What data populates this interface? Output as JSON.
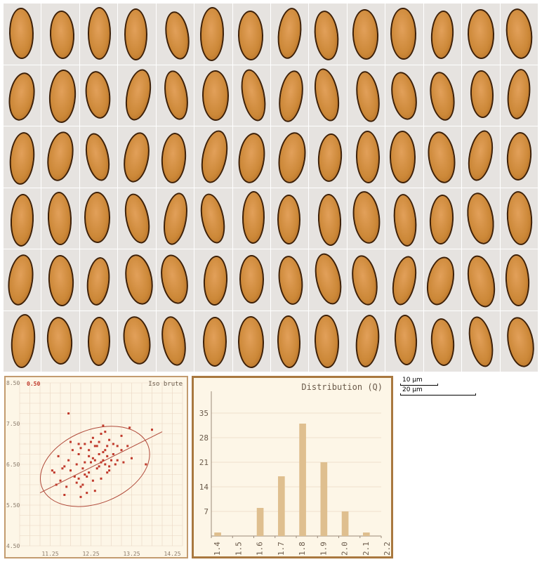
{
  "mosaic": {
    "rows": 6,
    "cols": 14,
    "cell_fill": "#e6e3e0",
    "spore_fill": "#cc8838",
    "spore_edge": "#3d2008",
    "spore_highlight": "#e2a05a"
  },
  "scatter_panel": {
    "corner_value": "0.50",
    "mode_label": "Iso brute",
    "colors": {
      "panel_bg": "#fdf6e7",
      "border": "#c39b6f",
      "grid": "#ead6c1",
      "point": "#c0392b",
      "ellipse": "#b04a3a",
      "tick_text": "#8a7a6a",
      "corner_text": "#c0392b"
    }
  },
  "histogram_panel": {
    "colors": {
      "panel_bg": "#fdf6e7",
      "border": "#a9783f",
      "bar": "#dfbf8f",
      "grid": "#efe0cd",
      "text": "#6a5a4a"
    }
  },
  "scale_bars": [
    {
      "label": "10 µm"
    },
    {
      "label": "20 µm"
    }
  ],
  "chart_data": [
    {
      "type": "scatter",
      "title": "",
      "xlabel": "",
      "ylabel": "",
      "annotations": [
        "0.50",
        "Iso brute"
      ],
      "xlim": [
        10.5,
        14.5
      ],
      "ylim": [
        4.5,
        8.5
      ],
      "x_ticks": [
        "11.25",
        "12.25",
        "13.25",
        "14.25"
      ],
      "y_ticks": [
        "8.50",
        "7.50",
        "6.50",
        "5.50",
        "4.50"
      ],
      "regression_line": {
        "from": [
          11.0,
          5.8
        ],
        "to": [
          14.0,
          7.3
        ]
      },
      "ellipse": {
        "center": [
          12.35,
          6.45
        ],
        "rx": 1.4,
        "ry": 0.9,
        "angle_deg": -22
      },
      "points": [
        [
          11.3,
          6.35
        ],
        [
          11.35,
          6.3
        ],
        [
          11.4,
          6.0
        ],
        [
          11.45,
          6.7
        ],
        [
          11.5,
          6.1
        ],
        [
          11.55,
          6.4
        ],
        [
          11.6,
          6.45
        ],
        [
          11.65,
          5.95
        ],
        [
          11.7,
          6.6
        ],
        [
          11.75,
          6.35
        ],
        [
          11.75,
          7.05
        ],
        [
          11.7,
          7.75
        ],
        [
          11.8,
          6.85
        ],
        [
          11.85,
          6.2
        ],
        [
          11.9,
          6.5
        ],
        [
          11.95,
          6.75
        ],
        [
          11.95,
          6.15
        ],
        [
          12.0,
          6.9
        ],
        [
          12.0,
          5.95
        ],
        [
          12.05,
          6.4
        ],
        [
          12.1,
          6.55
        ],
        [
          12.1,
          7.0
        ],
        [
          12.15,
          6.2
        ],
        [
          12.15,
          5.8
        ],
        [
          12.2,
          6.85
        ],
        [
          12.2,
          6.3
        ],
        [
          12.25,
          7.05
        ],
        [
          12.25,
          6.55
        ],
        [
          12.3,
          6.1
        ],
        [
          12.3,
          6.65
        ],
        [
          12.35,
          5.85
        ],
        [
          12.35,
          6.6
        ],
        [
          12.4,
          6.95
        ],
        [
          12.4,
          6.4
        ],
        [
          12.45,
          6.75
        ],
        [
          12.45,
          6.45
        ],
        [
          12.5,
          7.25
        ],
        [
          12.5,
          6.55
        ],
        [
          12.5,
          6.15
        ],
        [
          12.55,
          6.8
        ],
        [
          12.55,
          6.6
        ],
        [
          12.6,
          7.3
        ],
        [
          12.6,
          6.5
        ],
        [
          12.65,
          6.7
        ],
        [
          12.65,
          6.95
        ],
        [
          12.7,
          6.45
        ],
        [
          12.7,
          7.1
        ],
        [
          12.75,
          6.6
        ],
        [
          12.8,
          7.0
        ],
        [
          12.8,
          6.75
        ],
        [
          12.85,
          6.5
        ],
        [
          12.9,
          6.95
        ],
        [
          12.9,
          6.6
        ],
        [
          13.0,
          6.85
        ],
        [
          13.0,
          7.2
        ],
        [
          13.05,
          6.55
        ],
        [
          13.15,
          6.95
        ],
        [
          13.2,
          7.4
        ],
        [
          13.25,
          6.65
        ],
        [
          13.6,
          6.5
        ],
        [
          13.75,
          7.35
        ],
        [
          12.05,
          6.0
        ],
        [
          11.9,
          6.05
        ],
        [
          12.0,
          5.7
        ],
        [
          11.6,
          5.75
        ],
        [
          12.3,
          7.15
        ],
        [
          12.45,
          7.05
        ],
        [
          12.6,
          6.85
        ],
        [
          12.7,
          6.35
        ],
        [
          12.2,
          6.7
        ],
        [
          12.1,
          6.25
        ],
        [
          12.55,
          7.45
        ],
        [
          12.35,
          6.95
        ],
        [
          12.65,
          6.3
        ],
        [
          11.95,
          7.0
        ]
      ]
    },
    {
      "type": "bar",
      "title": "Distribution (Q)",
      "xlabel": "",
      "ylabel": "",
      "x_ticks": [
        "1.4",
        "1.5",
        "1.6",
        "1.7",
        "1.8",
        "1.9",
        "2.0",
        "2.1",
        "2.2"
      ],
      "y_ticks": [
        "35",
        "28",
        "21",
        "14",
        "7"
      ],
      "ylim": [
        0,
        40
      ],
      "bars": [
        {
          "x": 1.43,
          "value": 1
        },
        {
          "x": 1.63,
          "value": 8
        },
        {
          "x": 1.73,
          "value": 17
        },
        {
          "x": 1.83,
          "value": 32
        },
        {
          "x": 1.93,
          "value": 21
        },
        {
          "x": 2.03,
          "value": 7
        },
        {
          "x": 2.13,
          "value": 1
        }
      ]
    }
  ]
}
